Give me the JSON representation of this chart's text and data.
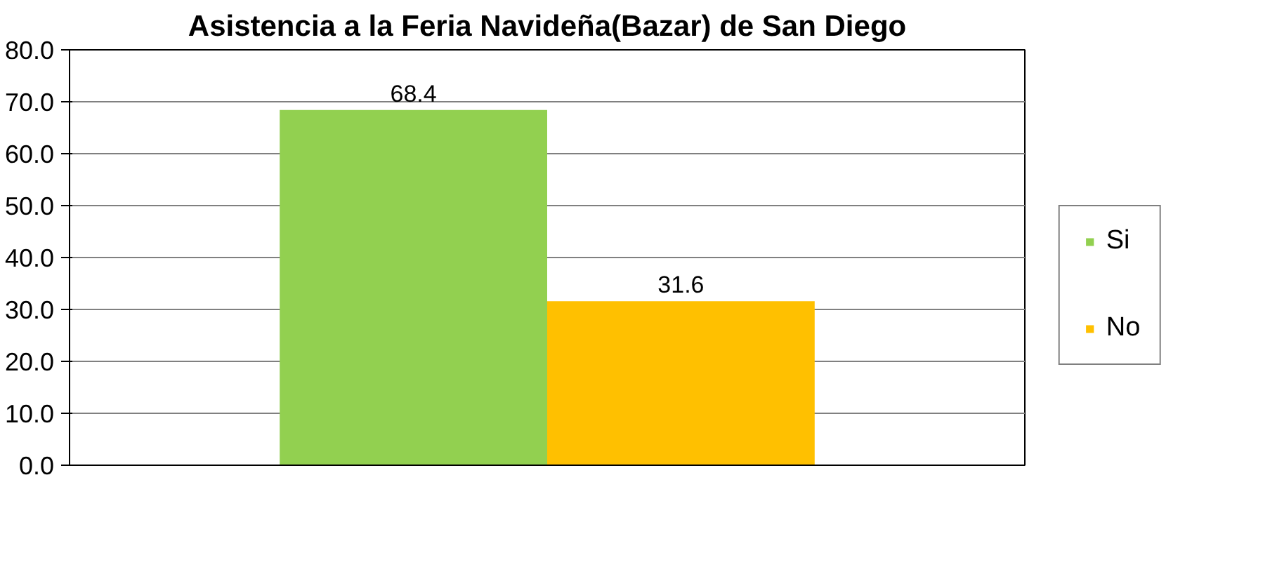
{
  "chart_data": {
    "type": "bar",
    "title": "Asistencia a la Feria Navideña(Bazar) de San Diego",
    "categories": [
      null
    ],
    "series": [
      {
        "name": "Si",
        "color": "#92d050",
        "values": [
          68.4
        ]
      },
      {
        "name": "No",
        "color": "#ffc000",
        "values": [
          31.6
        ]
      }
    ],
    "ylim": [
      0,
      80
    ],
    "yticks": [
      {
        "value": 0,
        "label": "0.0"
      },
      {
        "value": 10,
        "label": "10.0"
      },
      {
        "value": 20,
        "label": "20.0"
      },
      {
        "value": 30,
        "label": "30.0"
      },
      {
        "value": 40,
        "label": "40.0"
      },
      {
        "value": 50,
        "label": "50.0"
      },
      {
        "value": 60,
        "label": "60.0"
      },
      {
        "value": 70,
        "label": "70.0"
      },
      {
        "value": 80,
        "label": "80.0"
      }
    ],
    "grid": "y",
    "legend": "right",
    "data_labels": true
  }
}
